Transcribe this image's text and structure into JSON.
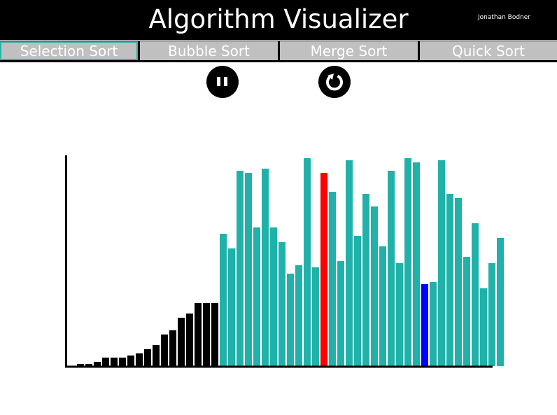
{
  "header": {
    "title": "Algorithm Visualizer",
    "author": "Jonathan Bodner"
  },
  "tabs": [
    {
      "label": "Selection Sort",
      "active": true
    },
    {
      "label": "Bubble Sort",
      "active": false
    },
    {
      "label": "Merge Sort",
      "active": false
    },
    {
      "label": "Quick Sort",
      "active": false
    }
  ],
  "controls": {
    "pause_icon": "pause-icon",
    "reset_icon": "restart-icon"
  },
  "colors": {
    "sorted": "#000000",
    "unsorted": "#20b2a9",
    "current": "#ff0000",
    "minimum": "#0000ff",
    "accent": "#2ab3a8"
  },
  "chart_data": {
    "type": "bar",
    "values": [
      0,
      1,
      1,
      2,
      4,
      4,
      4,
      5,
      6,
      8,
      10,
      15,
      17,
      23,
      25,
      30,
      30,
      30,
      63,
      56,
      93,
      92,
      66,
      94,
      66,
      59,
      44,
      48,
      99,
      47,
      92,
      83,
      50,
      98,
      62,
      82,
      76,
      57,
      93,
      49,
      99,
      97,
      39,
      40,
      98,
      82,
      80,
      52,
      68,
      37,
      49,
      61
    ],
    "states": [
      "sorted",
      "sorted",
      "sorted",
      "sorted",
      "sorted",
      "sorted",
      "sorted",
      "sorted",
      "sorted",
      "sorted",
      "sorted",
      "sorted",
      "sorted",
      "sorted",
      "sorted",
      "sorted",
      "sorted",
      "sorted",
      "unsorted",
      "unsorted",
      "unsorted",
      "unsorted",
      "unsorted",
      "unsorted",
      "unsorted",
      "unsorted",
      "unsorted",
      "unsorted",
      "unsorted",
      "unsorted",
      "current",
      "unsorted",
      "unsorted",
      "unsorted",
      "unsorted",
      "unsorted",
      "unsorted",
      "unsorted",
      "unsorted",
      "unsorted",
      "unsorted",
      "unsorted",
      "minimum",
      "unsorted",
      "unsorted",
      "unsorted",
      "unsorted",
      "unsorted",
      "unsorted",
      "unsorted",
      "unsorted",
      "unsorted"
    ],
    "ylim": [
      0,
      100
    ],
    "grid": false
  }
}
